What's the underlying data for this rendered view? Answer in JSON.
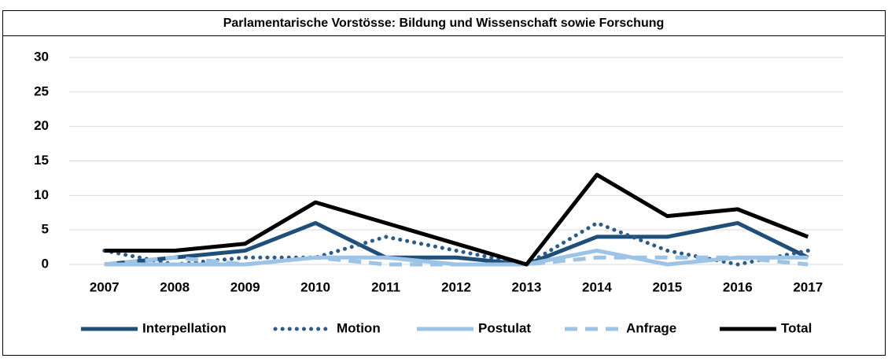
{
  "chart_data": {
    "type": "line",
    "title": "Parlamentarische Vorstösse: Bildung und Wissenschaft sowie Forschung",
    "categories": [
      "2007",
      "2008",
      "2009",
      "2010",
      "2011",
      "2012",
      "2013",
      "2014",
      "2015",
      "2016",
      "2017"
    ],
    "series": [
      {
        "name": "Interpellation",
        "color": "#1f4e79",
        "dash": "solid",
        "values": [
          0,
          1,
          2,
          6,
          1,
          1,
          0,
          4,
          4,
          6,
          1
        ]
      },
      {
        "name": "Motion",
        "color": "#2e5a87",
        "dash": "dotted",
        "values": [
          2,
          0,
          1,
          1,
          4,
          2,
          0,
          6,
          2,
          0,
          2
        ]
      },
      {
        "name": "Postulat",
        "color": "#9dc3e6",
        "dash": "solid",
        "values": [
          0,
          0,
          0,
          1,
          1,
          0,
          0,
          2,
          0,
          1,
          1
        ]
      },
      {
        "name": "Anfrage",
        "color": "#9dc3e6",
        "dash": "dashed",
        "values": [
          0,
          1,
          0,
          1,
          0,
          0,
          0,
          1,
          1,
          1,
          0
        ]
      },
      {
        "name": "Total",
        "color": "#000000",
        "dash": "solid",
        "values": [
          2,
          2,
          3,
          9,
          6,
          3,
          0,
          13,
          7,
          8,
          4
        ]
      }
    ],
    "ylim": [
      0,
      30
    ],
    "yticks": [
      0,
      5,
      10,
      15,
      20,
      25,
      30
    ],
    "grid": true,
    "legend": "bottom"
  }
}
